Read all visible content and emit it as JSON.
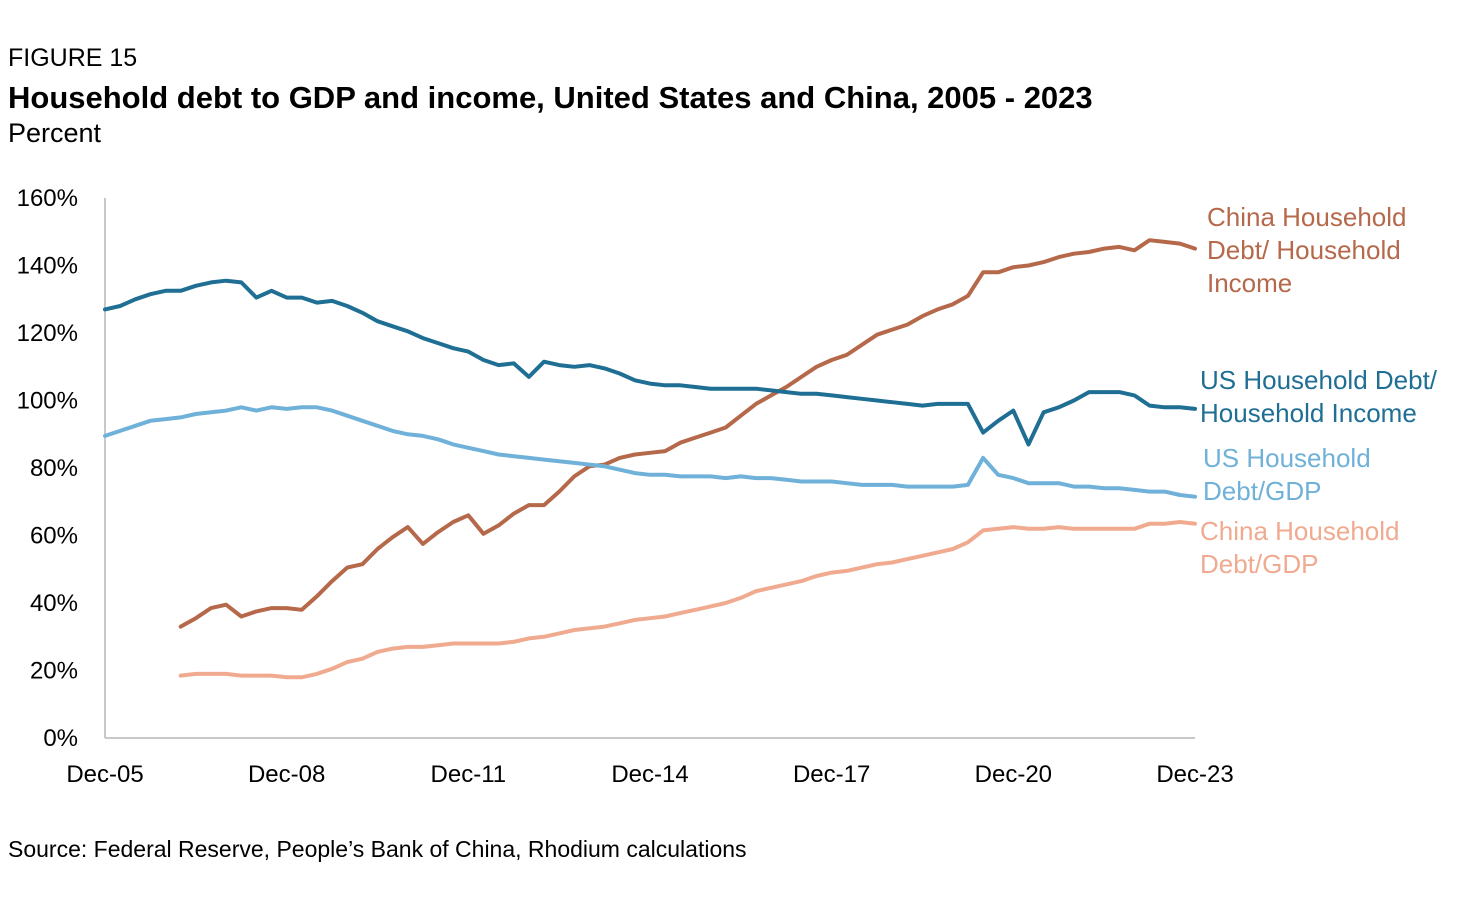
{
  "header": {
    "figure_label": "FIGURE 15",
    "title": "Household debt to GDP and income, United States and China, 2005 - 2023",
    "subtitle": "Percent"
  },
  "footer": {
    "source": "Source: Federal Reserve, People’s Bank of China, Rhodium calculations"
  },
  "chart_data": {
    "type": "line",
    "title": "Household debt to GDP and income, United States and China, 2005 - 2023",
    "ylabel": "Percent",
    "xlabel": "",
    "ylim": [
      0,
      160
    ],
    "xlim": [
      2005.92,
      2023.92
    ],
    "y_ticks": [
      0,
      20,
      40,
      60,
      80,
      100,
      120,
      140,
      160
    ],
    "y_tick_labels": [
      "0%",
      "20%",
      "40%",
      "60%",
      "80%",
      "100%",
      "120%",
      "140%",
      "160%"
    ],
    "x_ticks": [
      2005.92,
      2008.92,
      2011.92,
      2014.92,
      2017.92,
      2020.92,
      2023.92
    ],
    "x_tick_labels": [
      "Dec-05",
      "Dec-08",
      "Dec-11",
      "Dec-14",
      "Dec-17",
      "Dec-20",
      "Dec-23"
    ],
    "grid": false,
    "series": [
      {
        "name": "China Household Debt/ Household Income",
        "label_lines": [
          "China Household",
          "Debt/ Household",
          "Income"
        ],
        "color": "#b5694a",
        "points": [
          [
            2007.17,
            33
          ],
          [
            2007.42,
            35.5
          ],
          [
            2007.67,
            38.5
          ],
          [
            2007.92,
            39.5
          ],
          [
            2008.17,
            36
          ],
          [
            2008.42,
            37.5
          ],
          [
            2008.67,
            38.5
          ],
          [
            2008.92,
            38.5
          ],
          [
            2009.17,
            38
          ],
          [
            2009.42,
            42
          ],
          [
            2009.67,
            46.5
          ],
          [
            2009.92,
            50.5
          ],
          [
            2010.17,
            51.5
          ],
          [
            2010.42,
            56
          ],
          [
            2010.67,
            59.5
          ],
          [
            2010.92,
            62.5
          ],
          [
            2011.17,
            57.5
          ],
          [
            2011.42,
            61
          ],
          [
            2011.67,
            64
          ],
          [
            2011.92,
            66
          ],
          [
            2012.17,
            60.5
          ],
          [
            2012.42,
            63
          ],
          [
            2012.67,
            66.5
          ],
          [
            2012.92,
            69
          ],
          [
            2013.17,
            69
          ],
          [
            2013.42,
            73
          ],
          [
            2013.67,
            77.5
          ],
          [
            2013.92,
            80.5
          ],
          [
            2014.17,
            81
          ],
          [
            2014.42,
            83
          ],
          [
            2014.67,
            84
          ],
          [
            2014.92,
            84.5
          ],
          [
            2015.17,
            85
          ],
          [
            2015.42,
            87.5
          ],
          [
            2015.67,
            89
          ],
          [
            2015.92,
            90.5
          ],
          [
            2016.17,
            92
          ],
          [
            2016.42,
            95.5
          ],
          [
            2016.67,
            99
          ],
          [
            2016.92,
            101.5
          ],
          [
            2017.17,
            104
          ],
          [
            2017.42,
            107
          ],
          [
            2017.67,
            110
          ],
          [
            2017.92,
            112
          ],
          [
            2018.17,
            113.5
          ],
          [
            2018.42,
            116.5
          ],
          [
            2018.67,
            119.5
          ],
          [
            2018.92,
            121
          ],
          [
            2019.17,
            122.5
          ],
          [
            2019.42,
            125
          ],
          [
            2019.67,
            127
          ],
          [
            2019.92,
            128.5
          ],
          [
            2020.17,
            131
          ],
          [
            2020.42,
            138
          ],
          [
            2020.67,
            138
          ],
          [
            2020.92,
            139.5
          ],
          [
            2021.17,
            140
          ],
          [
            2021.42,
            141
          ],
          [
            2021.67,
            142.5
          ],
          [
            2021.92,
            143.5
          ],
          [
            2022.17,
            144
          ],
          [
            2022.42,
            145
          ],
          [
            2022.67,
            145.5
          ],
          [
            2022.92,
            144.5
          ],
          [
            2023.17,
            147.5
          ],
          [
            2023.42,
            147
          ],
          [
            2023.67,
            146.5
          ],
          [
            2023.92,
            145
          ]
        ]
      },
      {
        "name": "US Household Debt/ Household Income",
        "label_lines": [
          "US Household Debt/",
          "Household Income"
        ],
        "color": "#1f6e94",
        "points": [
          [
            2005.92,
            127
          ],
          [
            2006.17,
            128
          ],
          [
            2006.42,
            130
          ],
          [
            2006.67,
            131.5
          ],
          [
            2006.92,
            132.5
          ],
          [
            2007.17,
            132.5
          ],
          [
            2007.42,
            134
          ],
          [
            2007.67,
            135
          ],
          [
            2007.92,
            135.5
          ],
          [
            2008.17,
            135
          ],
          [
            2008.42,
            130.5
          ],
          [
            2008.67,
            132.5
          ],
          [
            2008.92,
            130.5
          ],
          [
            2009.17,
            130.5
          ],
          [
            2009.42,
            129
          ],
          [
            2009.67,
            129.5
          ],
          [
            2009.92,
            128
          ],
          [
            2010.17,
            126
          ],
          [
            2010.42,
            123.5
          ],
          [
            2010.67,
            122
          ],
          [
            2010.92,
            120.5
          ],
          [
            2011.17,
            118.5
          ],
          [
            2011.42,
            117
          ],
          [
            2011.67,
            115.5
          ],
          [
            2011.92,
            114.5
          ],
          [
            2012.17,
            112
          ],
          [
            2012.42,
            110.5
          ],
          [
            2012.67,
            111
          ],
          [
            2012.92,
            107
          ],
          [
            2013.17,
            111.5
          ],
          [
            2013.42,
            110.5
          ],
          [
            2013.67,
            110
          ],
          [
            2013.92,
            110.5
          ],
          [
            2014.17,
            109.5
          ],
          [
            2014.42,
            108
          ],
          [
            2014.67,
            106
          ],
          [
            2014.92,
            105
          ],
          [
            2015.17,
            104.5
          ],
          [
            2015.42,
            104.5
          ],
          [
            2015.67,
            104
          ],
          [
            2015.92,
            103.5
          ],
          [
            2016.17,
            103.5
          ],
          [
            2016.42,
            103.5
          ],
          [
            2016.67,
            103.5
          ],
          [
            2016.92,
            103
          ],
          [
            2017.17,
            102.5
          ],
          [
            2017.42,
            102
          ],
          [
            2017.67,
            102
          ],
          [
            2017.92,
            101.5
          ],
          [
            2018.17,
            101
          ],
          [
            2018.42,
            100.5
          ],
          [
            2018.67,
            100
          ],
          [
            2018.92,
            99.5
          ],
          [
            2019.17,
            99
          ],
          [
            2019.42,
            98.5
          ],
          [
            2019.67,
            99
          ],
          [
            2019.92,
            99
          ],
          [
            2020.17,
            99
          ],
          [
            2020.42,
            90.5
          ],
          [
            2020.67,
            94
          ],
          [
            2020.92,
            97
          ],
          [
            2021.17,
            87
          ],
          [
            2021.42,
            96.5
          ],
          [
            2021.67,
            98
          ],
          [
            2021.92,
            100
          ],
          [
            2022.17,
            102.5
          ],
          [
            2022.42,
            102.5
          ],
          [
            2022.67,
            102.5
          ],
          [
            2022.92,
            101.5
          ],
          [
            2023.17,
            98.5
          ],
          [
            2023.42,
            98
          ],
          [
            2023.67,
            98
          ],
          [
            2023.92,
            97.5
          ]
        ]
      },
      {
        "name": "US Household Debt/GDP",
        "label_lines": [
          "US Household",
          "Debt/GDP"
        ],
        "color": "#6fb1d9",
        "points": [
          [
            2005.92,
            89.5
          ],
          [
            2006.17,
            91
          ],
          [
            2006.42,
            92.5
          ],
          [
            2006.67,
            94
          ],
          [
            2006.92,
            94.5
          ],
          [
            2007.17,
            95
          ],
          [
            2007.42,
            96
          ],
          [
            2007.67,
            96.5
          ],
          [
            2007.92,
            97
          ],
          [
            2008.17,
            98
          ],
          [
            2008.42,
            97
          ],
          [
            2008.67,
            98
          ],
          [
            2008.92,
            97.5
          ],
          [
            2009.17,
            98
          ],
          [
            2009.42,
            98
          ],
          [
            2009.67,
            97
          ],
          [
            2009.92,
            95.5
          ],
          [
            2010.17,
            94
          ],
          [
            2010.42,
            92.5
          ],
          [
            2010.67,
            91
          ],
          [
            2010.92,
            90
          ],
          [
            2011.17,
            89.5
          ],
          [
            2011.42,
            88.5
          ],
          [
            2011.67,
            87
          ],
          [
            2011.92,
            86
          ],
          [
            2012.17,
            85
          ],
          [
            2012.42,
            84
          ],
          [
            2012.67,
            83.5
          ],
          [
            2012.92,
            83
          ],
          [
            2013.17,
            82.5
          ],
          [
            2013.42,
            82
          ],
          [
            2013.67,
            81.5
          ],
          [
            2013.92,
            81
          ],
          [
            2014.17,
            80.5
          ],
          [
            2014.42,
            79.5
          ],
          [
            2014.67,
            78.5
          ],
          [
            2014.92,
            78
          ],
          [
            2015.17,
            78
          ],
          [
            2015.42,
            77.5
          ],
          [
            2015.67,
            77.5
          ],
          [
            2015.92,
            77.5
          ],
          [
            2016.17,
            77
          ],
          [
            2016.42,
            77.5
          ],
          [
            2016.67,
            77
          ],
          [
            2016.92,
            77
          ],
          [
            2017.17,
            76.5
          ],
          [
            2017.42,
            76
          ],
          [
            2017.67,
            76
          ],
          [
            2017.92,
            76
          ],
          [
            2018.17,
            75.5
          ],
          [
            2018.42,
            75
          ],
          [
            2018.67,
            75
          ],
          [
            2018.92,
            75
          ],
          [
            2019.17,
            74.5
          ],
          [
            2019.42,
            74.5
          ],
          [
            2019.67,
            74.5
          ],
          [
            2019.92,
            74.5
          ],
          [
            2020.17,
            75
          ],
          [
            2020.42,
            83
          ],
          [
            2020.67,
            78
          ],
          [
            2020.92,
            77
          ],
          [
            2021.17,
            75.5
          ],
          [
            2021.42,
            75.5
          ],
          [
            2021.67,
            75.5
          ],
          [
            2021.92,
            74.5
          ],
          [
            2022.17,
            74.5
          ],
          [
            2022.42,
            74
          ],
          [
            2022.67,
            74
          ],
          [
            2022.92,
            73.5
          ],
          [
            2023.17,
            73
          ],
          [
            2023.42,
            73
          ],
          [
            2023.67,
            72
          ],
          [
            2023.92,
            71.5
          ]
        ]
      },
      {
        "name": "China Household Debt/GDP",
        "label_lines": [
          "China Household",
          "Debt/GDP"
        ],
        "color": "#f0aa8f",
        "points": [
          [
            2007.17,
            18.5
          ],
          [
            2007.42,
            19
          ],
          [
            2007.67,
            19
          ],
          [
            2007.92,
            19
          ],
          [
            2008.17,
            18.5
          ],
          [
            2008.42,
            18.5
          ],
          [
            2008.67,
            18.5
          ],
          [
            2008.92,
            18
          ],
          [
            2009.17,
            18
          ],
          [
            2009.42,
            19
          ],
          [
            2009.67,
            20.5
          ],
          [
            2009.92,
            22.5
          ],
          [
            2010.17,
            23.5
          ],
          [
            2010.42,
            25.5
          ],
          [
            2010.67,
            26.5
          ],
          [
            2010.92,
            27
          ],
          [
            2011.17,
            27
          ],
          [
            2011.42,
            27.5
          ],
          [
            2011.67,
            28
          ],
          [
            2011.92,
            28
          ],
          [
            2012.17,
            28
          ],
          [
            2012.42,
            28
          ],
          [
            2012.67,
            28.5
          ],
          [
            2012.92,
            29.5
          ],
          [
            2013.17,
            30
          ],
          [
            2013.42,
            31
          ],
          [
            2013.67,
            32
          ],
          [
            2013.92,
            32.5
          ],
          [
            2014.17,
            33
          ],
          [
            2014.42,
            34
          ],
          [
            2014.67,
            35
          ],
          [
            2014.92,
            35.5
          ],
          [
            2015.17,
            36
          ],
          [
            2015.42,
            37
          ],
          [
            2015.67,
            38
          ],
          [
            2015.92,
            39
          ],
          [
            2016.17,
            40
          ],
          [
            2016.42,
            41.5
          ],
          [
            2016.67,
            43.5
          ],
          [
            2016.92,
            44.5
          ],
          [
            2017.17,
            45.5
          ],
          [
            2017.42,
            46.5
          ],
          [
            2017.67,
            48
          ],
          [
            2017.92,
            49
          ],
          [
            2018.17,
            49.5
          ],
          [
            2018.42,
            50.5
          ],
          [
            2018.67,
            51.5
          ],
          [
            2018.92,
            52
          ],
          [
            2019.17,
            53
          ],
          [
            2019.42,
            54
          ],
          [
            2019.67,
            55
          ],
          [
            2019.92,
            56
          ],
          [
            2020.17,
            58
          ],
          [
            2020.42,
            61.5
          ],
          [
            2020.67,
            62
          ],
          [
            2020.92,
            62.5
          ],
          [
            2021.17,
            62
          ],
          [
            2021.42,
            62
          ],
          [
            2021.67,
            62.5
          ],
          [
            2021.92,
            62
          ],
          [
            2022.17,
            62
          ],
          [
            2022.42,
            62
          ],
          [
            2022.67,
            62
          ],
          [
            2022.92,
            62
          ],
          [
            2023.17,
            63.5
          ],
          [
            2023.42,
            63.5
          ],
          [
            2023.67,
            64
          ],
          [
            2023.92,
            63.5
          ]
        ]
      }
    ]
  }
}
